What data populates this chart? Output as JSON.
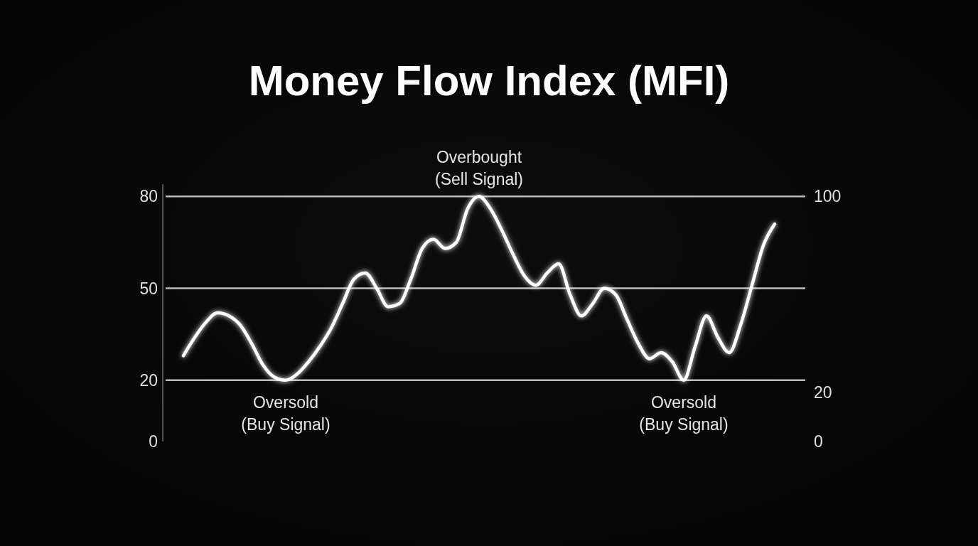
{
  "chart_data": {
    "type": "line",
    "title": "Money Flow Index (MFI)",
    "categories": [
      null,
      null,
      null,
      null,
      null,
      null,
      null,
      null,
      null,
      null,
      null,
      null,
      null,
      null,
      null,
      null,
      null,
      null,
      null,
      null,
      null,
      null,
      null,
      null,
      null,
      null,
      null,
      null,
      null,
      null,
      null,
      null,
      null,
      null,
      null,
      null,
      null,
      null,
      null,
      null,
      null,
      null,
      null,
      null,
      null,
      null,
      null,
      null,
      null,
      null,
      null,
      null,
      null
    ],
    "series": [
      {
        "color": "#ffffff",
        "values": [
          28,
          34,
          39,
          42,
          41,
          38,
          32,
          25,
          21,
          20,
          22,
          26,
          31,
          37,
          45,
          53,
          55,
          50,
          44,
          45,
          53,
          63,
          66,
          63,
          65,
          76,
          80,
          76,
          69,
          61,
          54,
          51,
          55,
          58,
          48,
          41,
          45,
          50,
          48,
          40,
          32,
          27,
          29,
          26,
          20,
          31,
          41,
          34,
          29,
          38,
          51,
          64,
          71
        ]
      }
    ],
    "ylim": [
      0,
      84
    ],
    "yticks": [
      0,
      20,
      50,
      80
    ],
    "y2lim": [
      0,
      100
    ],
    "y2ticks": [
      0,
      20,
      100
    ],
    "ref_lines": [
      {
        "axis": "y",
        "value": 80,
        "color": "#bdbdbd"
      },
      {
        "axis": "y",
        "value": 50,
        "color": "#bdbdbd"
      },
      {
        "axis": "y",
        "value": 20,
        "color": "#bdbdbd"
      }
    ],
    "annotations": [
      {
        "text": "Overbought\n(Sell Signal)",
        "y": 80
      },
      {
        "text": "Oversold\n(Buy Signal)",
        "y": 20
      },
      {
        "text": "Oversold\n(Buy Signal)",
        "y": 20
      }
    ]
  }
}
